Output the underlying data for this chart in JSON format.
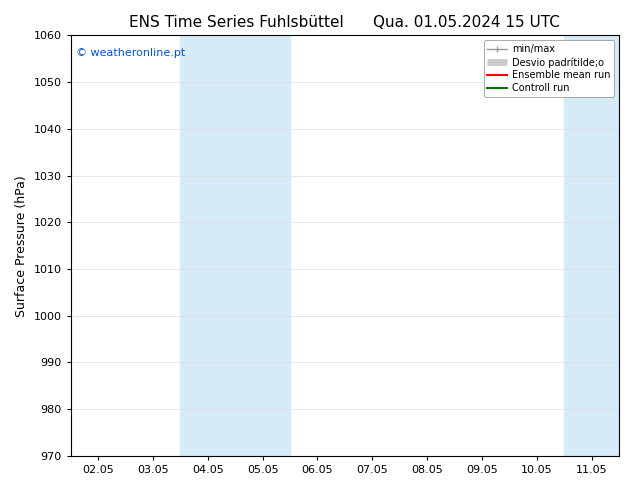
{
  "title_left": "ENS Time Series Fuhlsbüttel",
  "title_right": "Qua. 01.05.2024 15 UTC",
  "ylabel": "Surface Pressure (hPa)",
  "ylim": [
    970,
    1060
  ],
  "yticks": [
    970,
    980,
    990,
    1000,
    1010,
    1020,
    1030,
    1040,
    1050,
    1060
  ],
  "xtick_labels": [
    "02.05",
    "03.05",
    "04.05",
    "05.05",
    "06.05",
    "07.05",
    "08.05",
    "09.05",
    "10.05",
    "11.05"
  ],
  "xtick_positions": [
    0,
    1,
    2,
    3,
    4,
    5,
    6,
    7,
    8,
    9
  ],
  "xlim": [
    -0.5,
    9.5
  ],
  "shaded_bands": [
    {
      "xmin": 1.5,
      "xmax": 3.5
    },
    {
      "xmin": 8.5,
      "xmax": 9.5
    }
  ],
  "shade_color": "#d6eaf8",
  "legend_entries": [
    {
      "label": "min/max",
      "color": "#999999",
      "lw": 1.0
    },
    {
      "label": "Desvio padrítilde;o",
      "color": "#cccccc",
      "lw": 5
    },
    {
      "label": "Ensemble mean run",
      "color": "#ff0000",
      "lw": 1.5
    },
    {
      "label": "Controll run",
      "color": "#007700",
      "lw": 1.5
    }
  ],
  "copyright_text": "© weatheronline.pt",
  "copyright_color": "#0055cc",
  "copyright_fontsize": 8,
  "title_fontsize": 11,
  "ylabel_fontsize": 9,
  "tick_fontsize": 8,
  "background_color": "#ffffff",
  "grid_color": "#dddddd"
}
